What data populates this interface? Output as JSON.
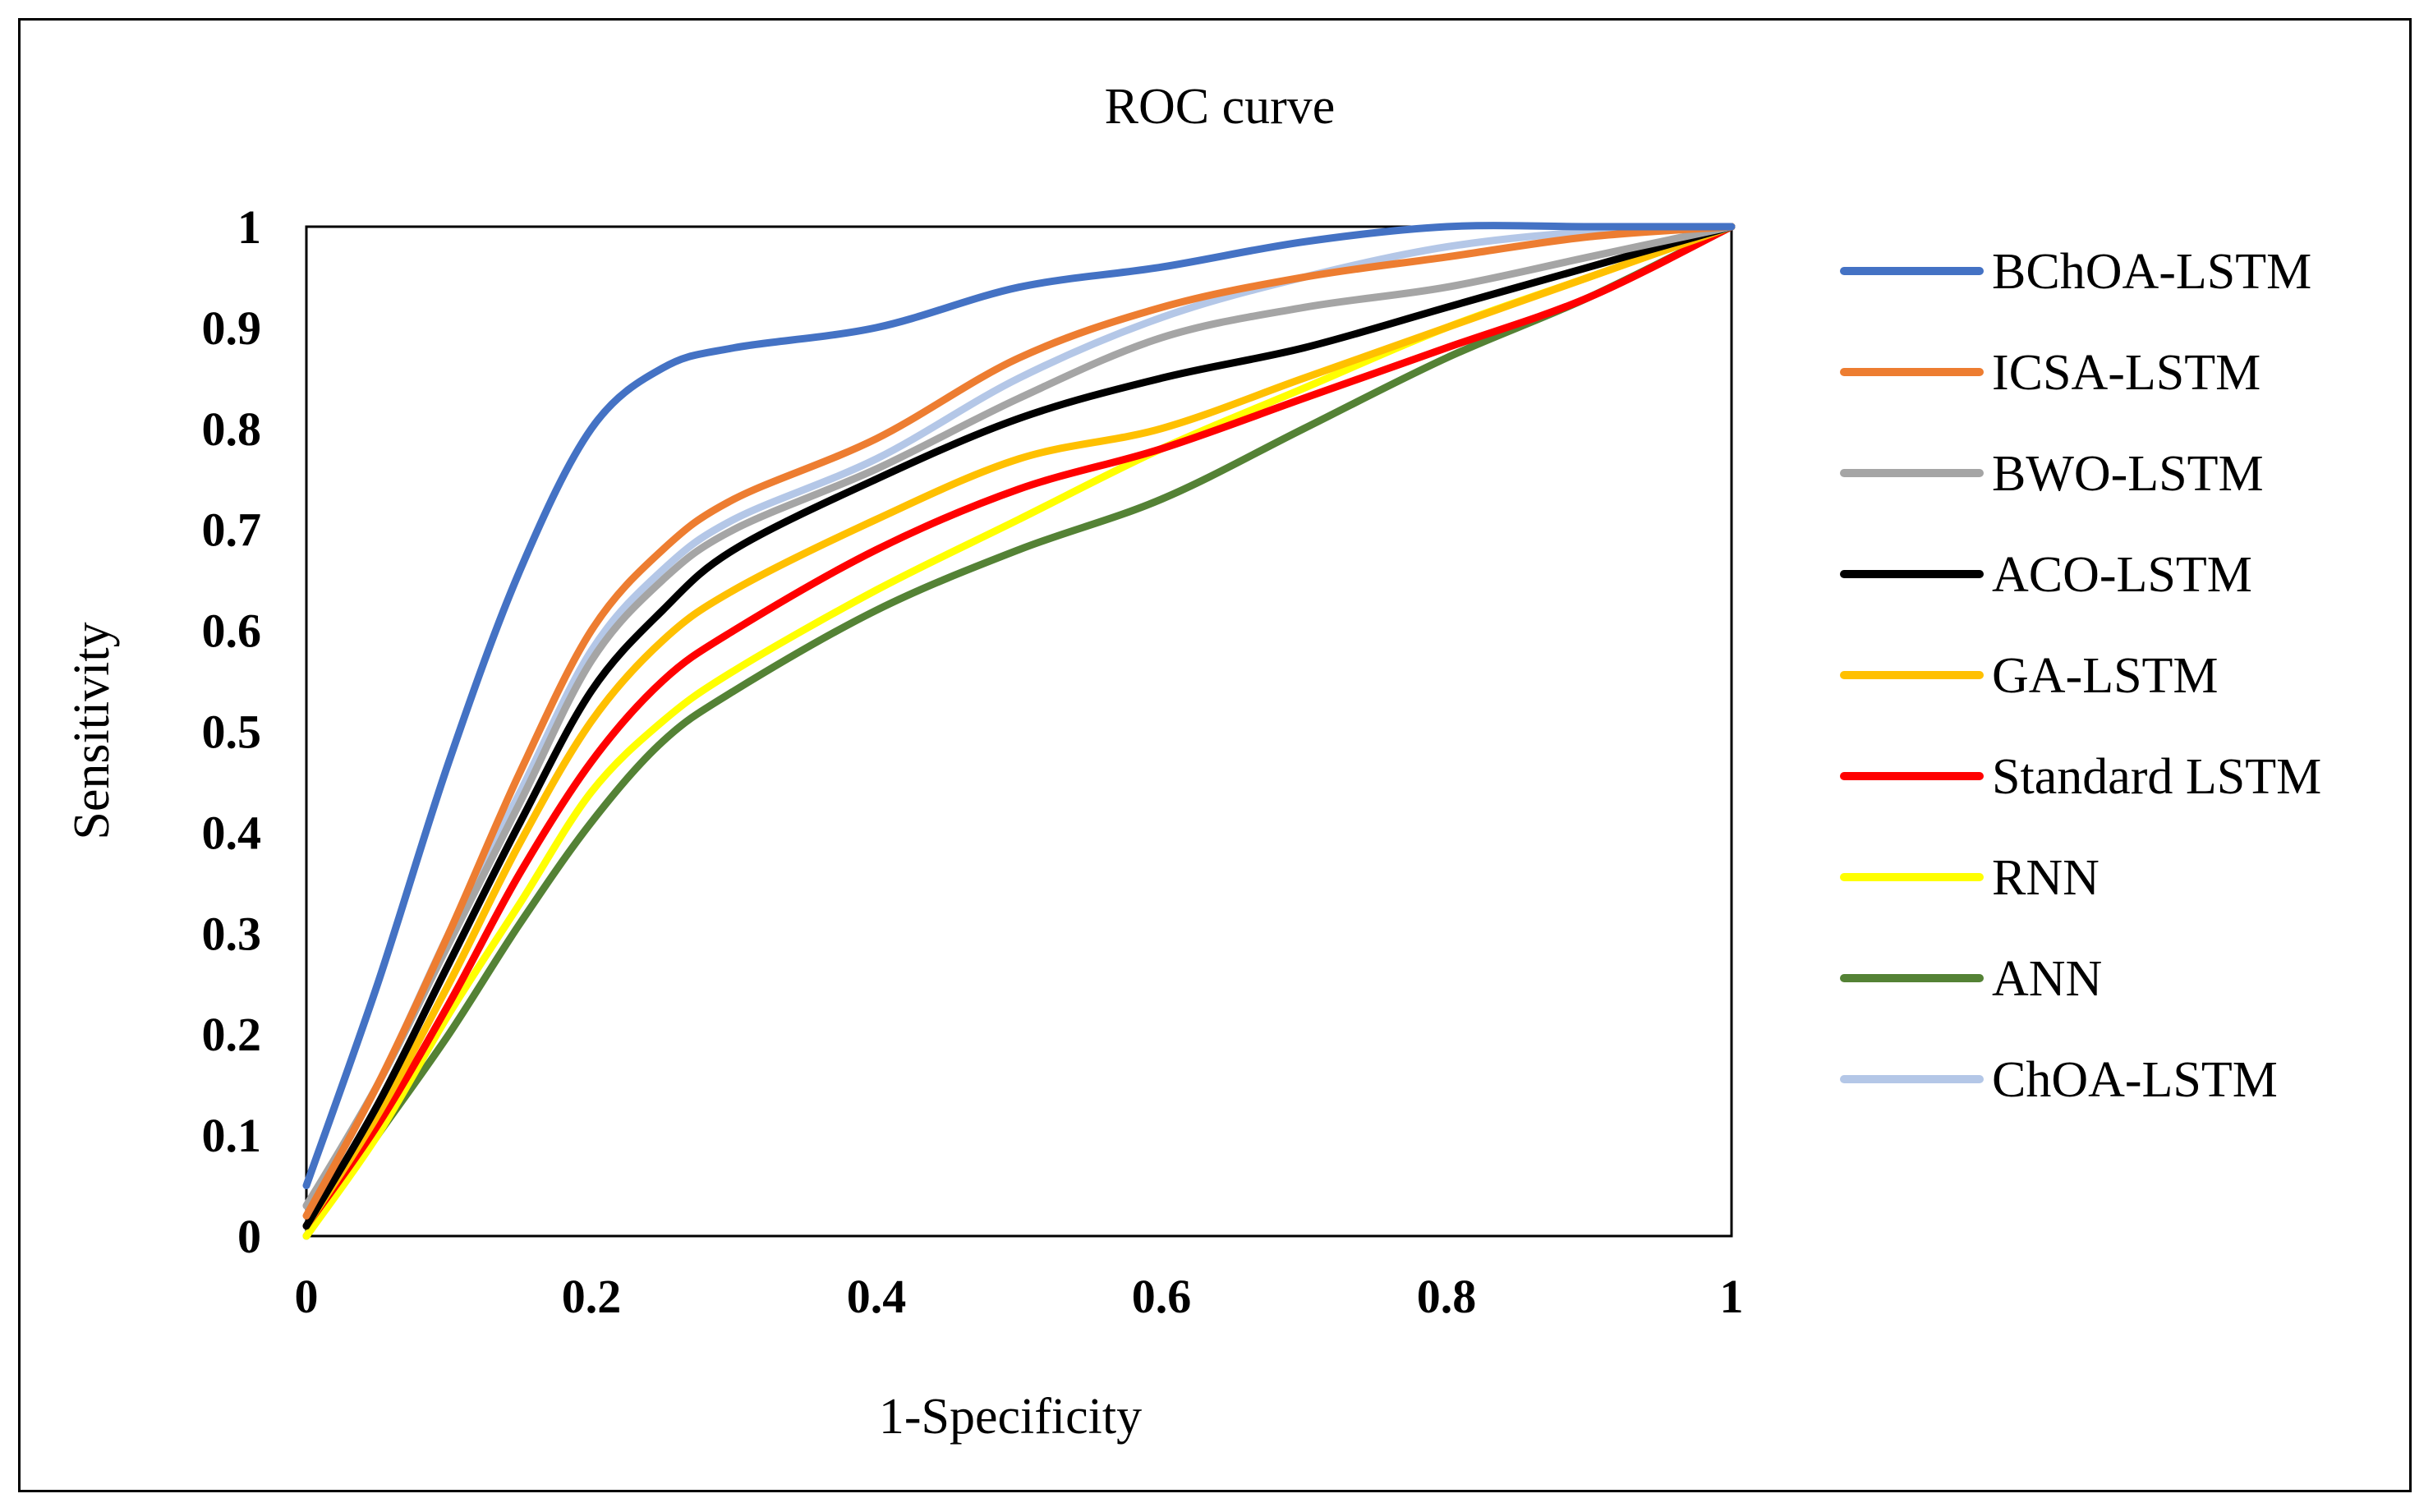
{
  "chart_data": {
    "type": "line",
    "title": "ROC curve",
    "xlabel": "1-Specificity",
    "ylabel": "Sensitivity",
    "xlim": [
      0,
      1
    ],
    "ylim": [
      0,
      1
    ],
    "x_ticks": [
      "0",
      "0.2",
      "0.4",
      "0.6",
      "0.8",
      "1"
    ],
    "y_ticks": [
      "0",
      "0.1",
      "0.2",
      "0.3",
      "0.4",
      "0.5",
      "0.6",
      "0.7",
      "0.8",
      "0.9",
      "1"
    ],
    "grid": false,
    "legend_position": "right",
    "series": [
      {
        "name": "BChOA-LSTM",
        "color": "#4472C4",
        "x": [
          0,
          0.05,
          0.1,
          0.15,
          0.2,
          0.25,
          0.3,
          0.4,
          0.5,
          0.6,
          0.7,
          0.8,
          0.9,
          1
        ],
        "y": [
          0.05,
          0.25,
          0.47,
          0.66,
          0.8,
          0.86,
          0.88,
          0.9,
          0.94,
          0.96,
          0.985,
          1.0,
          1.0,
          1.0
        ]
      },
      {
        "name": "ICSA-LSTM",
        "color": "#ED7D31",
        "x": [
          0,
          0.05,
          0.1,
          0.15,
          0.2,
          0.25,
          0.3,
          0.4,
          0.5,
          0.6,
          0.7,
          0.8,
          0.9,
          1
        ],
        "y": [
          0.02,
          0.15,
          0.3,
          0.46,
          0.6,
          0.68,
          0.73,
          0.79,
          0.87,
          0.92,
          0.95,
          0.97,
          0.99,
          1.0
        ]
      },
      {
        "name": "BWO-LSTM",
        "color": "#A5A5A5",
        "x": [
          0,
          0.05,
          0.1,
          0.15,
          0.2,
          0.25,
          0.3,
          0.4,
          0.5,
          0.6,
          0.7,
          0.8,
          0.9,
          1
        ],
        "y": [
          0.03,
          0.15,
          0.29,
          0.43,
          0.57,
          0.65,
          0.7,
          0.76,
          0.83,
          0.89,
          0.92,
          0.94,
          0.97,
          1.0
        ]
      },
      {
        "name": "ACO-LSTM",
        "color": "#000000",
        "x": [
          0,
          0.05,
          0.1,
          0.15,
          0.2,
          0.25,
          0.3,
          0.4,
          0.5,
          0.6,
          0.7,
          0.8,
          0.9,
          1
        ],
        "y": [
          0.01,
          0.13,
          0.27,
          0.41,
          0.54,
          0.62,
          0.68,
          0.75,
          0.81,
          0.85,
          0.88,
          0.92,
          0.96,
          1.0
        ]
      },
      {
        "name": "GA-LSTM",
        "color": "#FFC000",
        "x": [
          0,
          0.05,
          0.1,
          0.15,
          0.2,
          0.25,
          0.3,
          0.4,
          0.5,
          0.6,
          0.7,
          0.8,
          0.9,
          1
        ],
        "y": [
          0.01,
          0.12,
          0.25,
          0.39,
          0.51,
          0.59,
          0.64,
          0.71,
          0.77,
          0.8,
          0.85,
          0.9,
          0.95,
          1.0
        ]
      },
      {
        "name": "Standard LSTM",
        "color": "#FF0000",
        "x": [
          0,
          0.05,
          0.1,
          0.15,
          0.2,
          0.25,
          0.3,
          0.4,
          0.5,
          0.6,
          0.7,
          0.8,
          0.9,
          1
        ],
        "y": [
          0.01,
          0.11,
          0.23,
          0.36,
          0.47,
          0.55,
          0.6,
          0.68,
          0.74,
          0.78,
          0.83,
          0.88,
          0.93,
          1.0
        ]
      },
      {
        "name": "RNN",
        "color": "#FFFF00",
        "x": [
          0,
          0.05,
          0.1,
          0.15,
          0.2,
          0.25,
          0.3,
          0.4,
          0.5,
          0.6,
          0.7,
          0.8,
          0.9,
          1
        ],
        "y": [
          0.0,
          0.1,
          0.22,
          0.33,
          0.44,
          0.51,
          0.56,
          0.64,
          0.71,
          0.78,
          0.84,
          0.9,
          0.95,
          1.0
        ]
      },
      {
        "name": "ANN",
        "color": "#548235",
        "x": [
          0,
          0.05,
          0.1,
          0.15,
          0.2,
          0.25,
          0.3,
          0.4,
          0.5,
          0.6,
          0.7,
          0.8,
          0.9,
          1
        ],
        "y": [
          0.0,
          0.1,
          0.2,
          0.31,
          0.41,
          0.49,
          0.54,
          0.62,
          0.68,
          0.73,
          0.8,
          0.87,
          0.93,
          1.0
        ]
      },
      {
        "name": "ChOA-LSTM",
        "color": "#B4C7E7",
        "x": [
          0,
          0.05,
          0.1,
          0.15,
          0.2,
          0.25,
          0.3,
          0.4,
          0.5,
          0.6,
          0.7,
          0.8,
          0.9,
          1
        ],
        "y": [
          0.03,
          0.15,
          0.3,
          0.44,
          0.58,
          0.66,
          0.71,
          0.77,
          0.85,
          0.91,
          0.95,
          0.98,
          0.995,
          1.0
        ]
      }
    ]
  }
}
